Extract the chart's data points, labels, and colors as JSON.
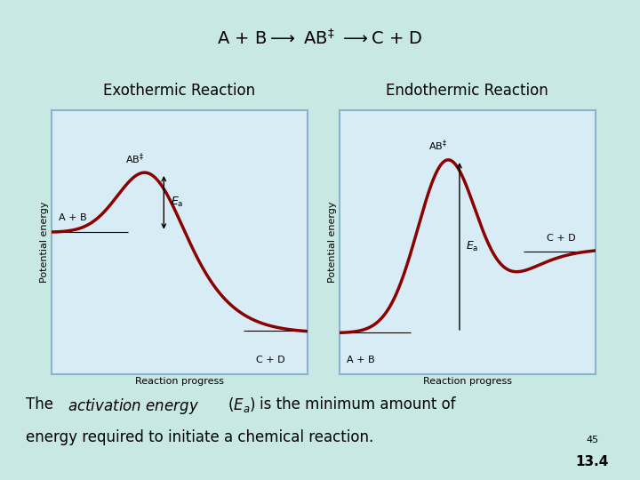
{
  "bg_color": "#c8e8e4",
  "plot_bg_color": "#d8ecf5",
  "plot_border_color": "#8ab4cc",
  "curve_color": "#8b0000",
  "curve_linewidth": 2.5,
  "exo_label": "Exothermic Reaction",
  "endo_label": "Endothermic Reaction",
  "xlabel": "Reaction progress",
  "ylabel": "Potential energy",
  "font_size_title": 14,
  "font_size_section_label": 12,
  "font_size_bottom": 12,
  "font_size_axis_label": 8,
  "font_size_annot": 8,
  "page_num_top": "45",
  "page_num_bottom": "13.4"
}
